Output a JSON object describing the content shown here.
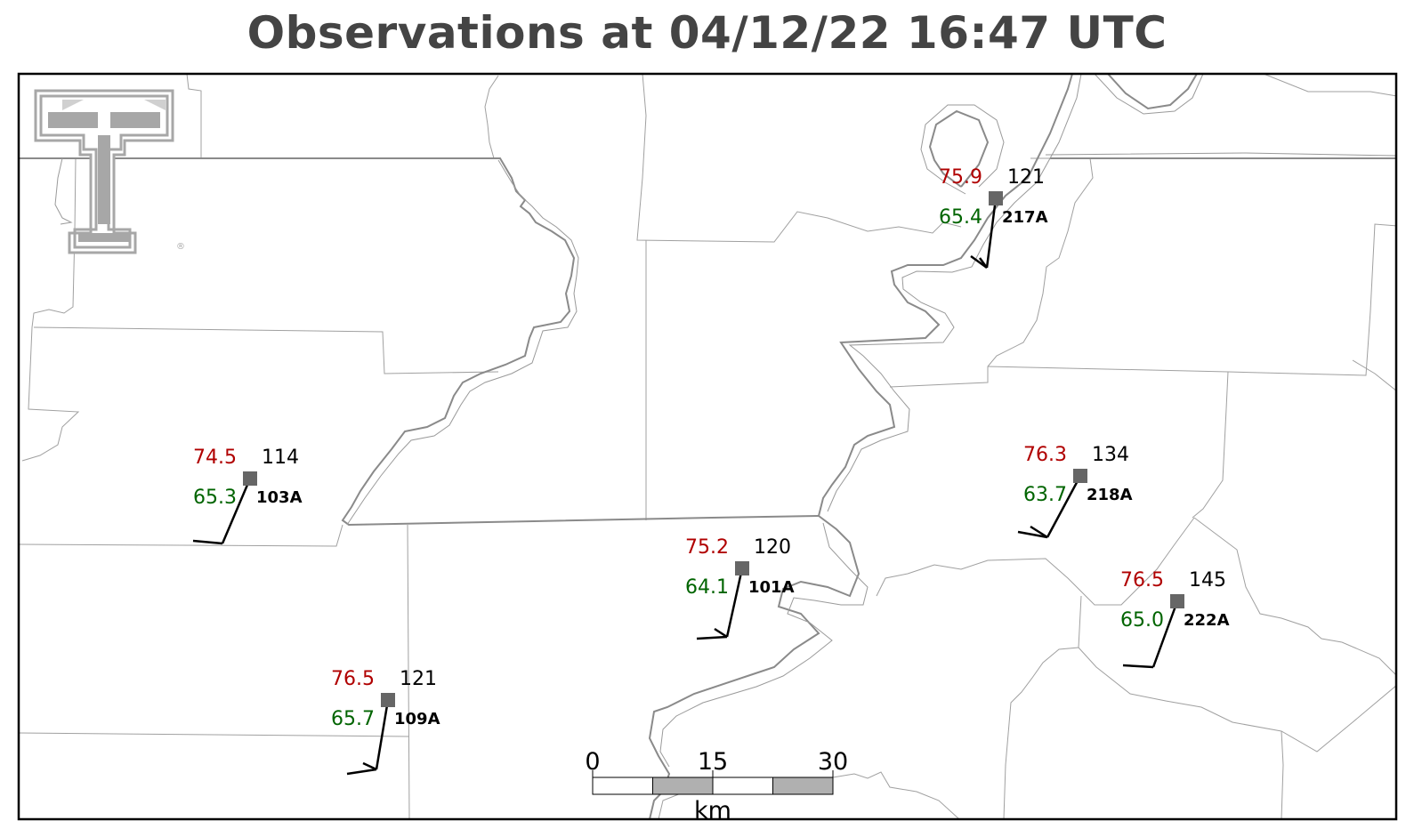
{
  "title": "Observations at 04/12/22 16:47 UTC",
  "colors": {
    "temperature": "#b00000",
    "dewpoint": "#006400",
    "value": "#000000",
    "station_marker": "#666666",
    "title": "#444444",
    "border_major": "#888888",
    "border_minor": "#9a9a9a",
    "scalebar_fill": "#b0b0b0"
  },
  "logo": {
    "icon": "double-t-logo-icon",
    "mark": "®"
  },
  "stations": [
    {
      "id": "217A",
      "temp": "75.9",
      "dewpoint": "65.4",
      "value": "121"
    },
    {
      "id": "103A",
      "temp": "74.5",
      "dewpoint": "65.3",
      "value": "114"
    },
    {
      "id": "218A",
      "temp": "76.3",
      "dewpoint": "63.7",
      "value": "134"
    },
    {
      "id": "101A",
      "temp": "75.2",
      "dewpoint": "64.1",
      "value": "120"
    },
    {
      "id": "222A",
      "temp": "76.5",
      "dewpoint": "65.0",
      "value": "145"
    },
    {
      "id": "109A",
      "temp": "76.5",
      "dewpoint": "65.7",
      "value": "121"
    }
  ],
  "scale_bar": {
    "labels": [
      "0",
      "15",
      "30"
    ],
    "unit": "km"
  }
}
